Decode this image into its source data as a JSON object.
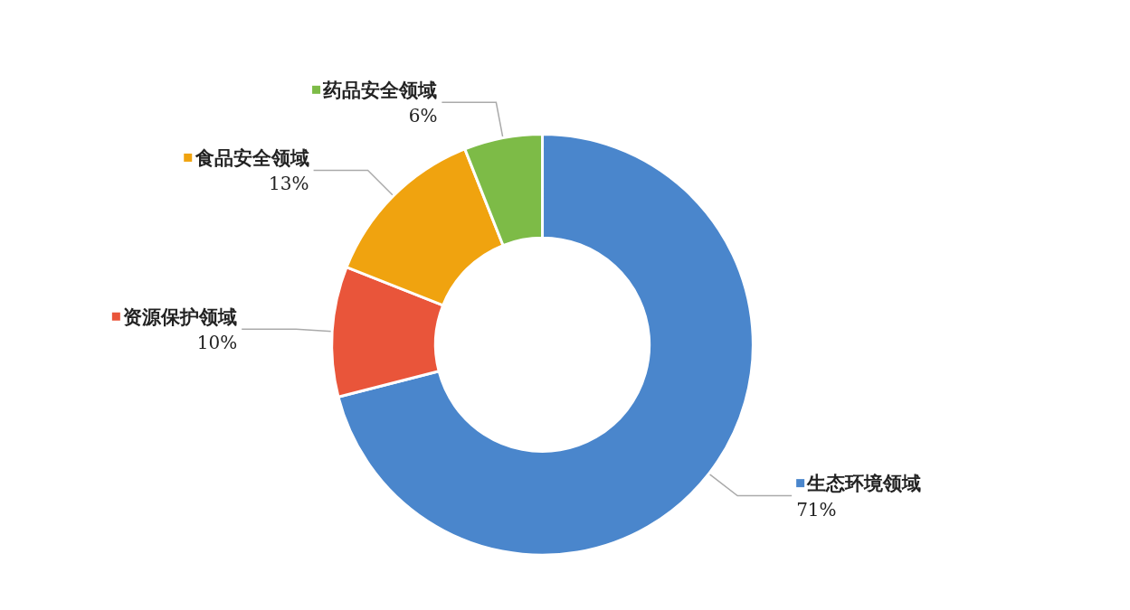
{
  "chart_data": {
    "type": "donut",
    "categories": [
      "生态环境领域",
      "资源保护领域",
      "食品安全领域",
      "药品安全领域"
    ],
    "values": [
      71,
      10,
      13,
      6
    ],
    "colors": [
      "#4a86cc",
      "#e9553a",
      "#f0a30f",
      "#7dbb47"
    ],
    "value_labels": [
      "71%",
      "10%",
      "13%",
      "6%"
    ],
    "legend": "top left"
  }
}
